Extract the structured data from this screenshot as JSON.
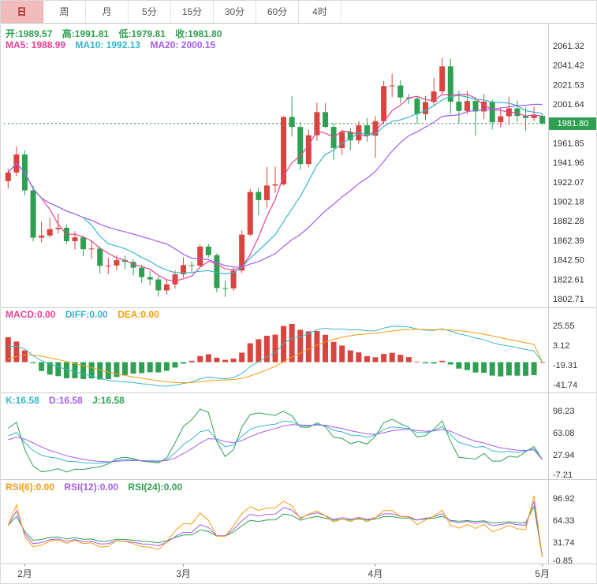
{
  "colors": {
    "up": "#d8443e",
    "down": "#2fa051",
    "ma5": "#e84393",
    "ma10": "#38b6c9",
    "ma20": "#a55eea",
    "macd_label": "#e84393",
    "diff": "#38b6c9",
    "dea": "#f39c12",
    "k": "#38b6c9",
    "d": "#a55eea",
    "j": "#2fa051",
    "rsi6": "#f39c12",
    "rsi12": "#a55eea",
    "rsi24": "#2fa051",
    "price_line": "#2fa051",
    "tag_bg": "#2fa051",
    "axis_text": "#333333",
    "sep": "#cccccc",
    "active_tab_bg": "#f2bcbc",
    "active_tab_text": "#a52a2a"
  },
  "toolbar": {
    "tabs": [
      {
        "label": "日",
        "active": true
      },
      {
        "label": "周",
        "active": false
      },
      {
        "label": "月",
        "active": false
      },
      {
        "label": "5分",
        "active": false
      },
      {
        "label": "15分",
        "active": false
      },
      {
        "label": "30分",
        "active": false
      },
      {
        "label": "60分",
        "active": false
      },
      {
        "label": "4时",
        "active": false
      }
    ]
  },
  "main_chart": {
    "legend": {
      "open": "开:1989.57",
      "high": "高:1991.81",
      "low": "低:1979.81",
      "close": "收:1981.80"
    },
    "ma_legend": {
      "ma5": "MA5: 1988.99",
      "ma10": "MA10: 1992.13",
      "ma20": "MA20: 2000.15"
    },
    "price_tag": "1981.80",
    "axis_ticks": [
      "2061.32",
      "2041.42",
      "2021.53",
      "2001.64",
      "1961.85",
      "1941.96",
      "1922.07",
      "1902.18",
      "1882.28",
      "1862.39",
      "1842.50",
      "1822.61",
      "1802.71"
    ]
  },
  "macd_panel": {
    "legend": {
      "macd": "MACD:0.00",
      "diff": "DIFF:0.00",
      "dea": "DEA:0.00"
    },
    "axis_ticks": [
      "25.55",
      "3.12",
      "-19.31",
      "-41.74"
    ]
  },
  "kdj_panel": {
    "legend": {
      "k": "K:16.58",
      "d": "D:16.58",
      "j": "J:16.58"
    },
    "axis_ticks": [
      "98.23",
      "63.08",
      "27.94",
      "-7.21"
    ]
  },
  "rsi_panel": {
    "legend": {
      "rsi6": "RSI(6):0.00",
      "rsi12": "RSI(12):0.00",
      "rsi24": "RSI(24):0.00"
    },
    "axis_ticks": [
      "96.92",
      "64.33",
      "31.74",
      "-0.85"
    ]
  },
  "xaxis": {
    "labels": [
      {
        "text": "2月",
        "index": 2
      },
      {
        "text": "3月",
        "index": 21
      },
      {
        "text": "4月",
        "index": 44
      },
      {
        "text": "5月",
        "index": 64
      }
    ]
  },
  "chart_data": {
    "type": "candlestick",
    "panels": [
      "price+MA(5,10,20)",
      "MACD(12,26,9)",
      "KDJ(9,3,3)",
      "RSI(6,12,24)"
    ],
    "ylim": [
      1802.71,
      2061.32
    ],
    "last_price": 1981.8,
    "ma_periods": [
      5,
      10,
      20
    ],
    "candles_ohlc": [
      [
        1922.9,
        1935.4,
        1915.2,
        1931.7
      ],
      [
        1931.7,
        1958.4,
        1928.1,
        1950.2
      ],
      [
        1950.2,
        1954.3,
        1908.5,
        1913.4
      ],
      [
        1913.4,
        1918.2,
        1861.3,
        1865.1
      ],
      [
        1865.1,
        1881.4,
        1860.2,
        1867.3
      ],
      [
        1867.3,
        1885.6,
        1865.0,
        1873.8
      ],
      [
        1873.8,
        1890.1,
        1869.4,
        1875.2
      ],
      [
        1875.2,
        1878.3,
        1858.7,
        1861.5
      ],
      [
        1861.5,
        1871.9,
        1852.8,
        1865.4
      ],
      [
        1865.4,
        1867.2,
        1846.1,
        1853.3
      ],
      [
        1853.3,
        1861.8,
        1843.6,
        1854.0
      ],
      [
        1854.0,
        1856.4,
        1828.3,
        1836.2
      ],
      [
        1836.2,
        1844.5,
        1827.9,
        1836.7
      ],
      [
        1836.7,
        1847.2,
        1831.4,
        1842.1
      ],
      [
        1842.1,
        1846.8,
        1833.2,
        1840.3
      ],
      [
        1840.3,
        1843.1,
        1826.5,
        1834.4
      ],
      [
        1834.4,
        1837.2,
        1818.9,
        1824.8
      ],
      [
        1824.8,
        1831.0,
        1816.3,
        1822.4
      ],
      [
        1822.4,
        1825.6,
        1804.9,
        1811.2
      ],
      [
        1811.2,
        1821.4,
        1806.8,
        1817.3
      ],
      [
        1817.3,
        1831.5,
        1813.1,
        1827.6
      ],
      [
        1827.6,
        1845.2,
        1824.3,
        1837.1
      ],
      [
        1837.1,
        1840.6,
        1829.8,
        1836.4
      ],
      [
        1836.4,
        1858.3,
        1834.5,
        1856.0
      ],
      [
        1856.0,
        1858.9,
        1844.7,
        1847.2
      ],
      [
        1847.2,
        1849.1,
        1809.4,
        1813.6
      ],
      [
        1813.6,
        1821.3,
        1804.5,
        1813.2
      ],
      [
        1813.2,
        1834.1,
        1810.7,
        1831.4
      ],
      [
        1831.4,
        1872.3,
        1828.9,
        1868.2
      ],
      [
        1868.2,
        1914.6,
        1866.5,
        1911.8
      ],
      [
        1911.8,
        1916.4,
        1888.1,
        1903.5
      ],
      [
        1903.5,
        1937.2,
        1895.7,
        1918.4
      ],
      [
        1918.4,
        1937.8,
        1911.2,
        1919.6
      ],
      [
        1919.6,
        1989.3,
        1918.5,
        1988.5
      ],
      [
        1988.5,
        2009.7,
        1968.4,
        1978.2
      ],
      [
        1978.2,
        1983.1,
        1934.5,
        1940.3
      ],
      [
        1940.3,
        1975.4,
        1936.9,
        1969.8
      ],
      [
        1969.8,
        2003.2,
        1964.1,
        1993.4
      ],
      [
        1993.4,
        2002.8,
        1976.9,
        1978.3
      ],
      [
        1978.3,
        1982.4,
        1944.6,
        1956.7
      ],
      [
        1956.7,
        1975.3,
        1949.8,
        1973.1
      ],
      [
        1973.1,
        1977.2,
        1954.4,
        1964.5
      ],
      [
        1964.5,
        1984.1,
        1961.3,
        1980.0
      ],
      [
        1980.0,
        1987.5,
        1963.2,
        1969.3
      ],
      [
        1969.3,
        1989.4,
        1946.8,
        1984.2
      ],
      [
        1984.2,
        2025.3,
        1981.6,
        2020.1
      ],
      [
        2020.1,
        2032.4,
        2008.7,
        2020.6
      ],
      [
        2020.6,
        2026.2,
        2002.3,
        2008.4
      ],
      [
        2008.4,
        2012.1,
        2001.8,
        2007.2
      ],
      [
        2007.2,
        2009.3,
        1981.5,
        1991.4
      ],
      [
        1991.4,
        2009.8,
        1985.2,
        2003.7
      ],
      [
        2003.7,
        2028.4,
        2000.1,
        2014.6
      ],
      [
        2014.6,
        2048.7,
        2011.3,
        2040.2
      ],
      [
        2040.2,
        2048.3,
        1991.7,
        2004.1
      ],
      [
        2004.1,
        2015.2,
        1981.9,
        1994.6
      ],
      [
        1994.6,
        2015.3,
        1991.4,
        2004.8
      ],
      [
        2004.8,
        2008.2,
        1969.5,
        1994.1
      ],
      [
        1994.1,
        2012.3,
        1986.4,
        2004.2
      ],
      [
        2004.2,
        2006.1,
        1975.8,
        1983.1
      ],
      [
        1983.1,
        1998.4,
        1977.3,
        1989.2
      ],
      [
        1989.2,
        2009.1,
        1980.5,
        1997.3
      ],
      [
        1997.3,
        2005.4,
        1983.7,
        1989.5
      ],
      [
        1989.5,
        1998.2,
        1974.6,
        1987.4
      ],
      [
        1987.4,
        1999.3,
        1984.2,
        1990.1
      ],
      [
        1989.57,
        1991.81,
        1979.81,
        1981.8
      ]
    ],
    "indicator_params": {
      "macd": [
        12,
        26,
        9
      ],
      "kdj": [
        9,
        3,
        3
      ],
      "rsi": [
        6,
        12,
        24
      ]
    },
    "last_values": {
      "macd": 0,
      "diff": 0,
      "dea": 0,
      "k": 16.58,
      "d": 16.58,
      "j": 16.58,
      "rsi6": 0,
      "rsi12": 0,
      "rsi24": 0
    },
    "rsi_peaks_before_drop": [
      96.9,
      88,
      80
    ]
  }
}
